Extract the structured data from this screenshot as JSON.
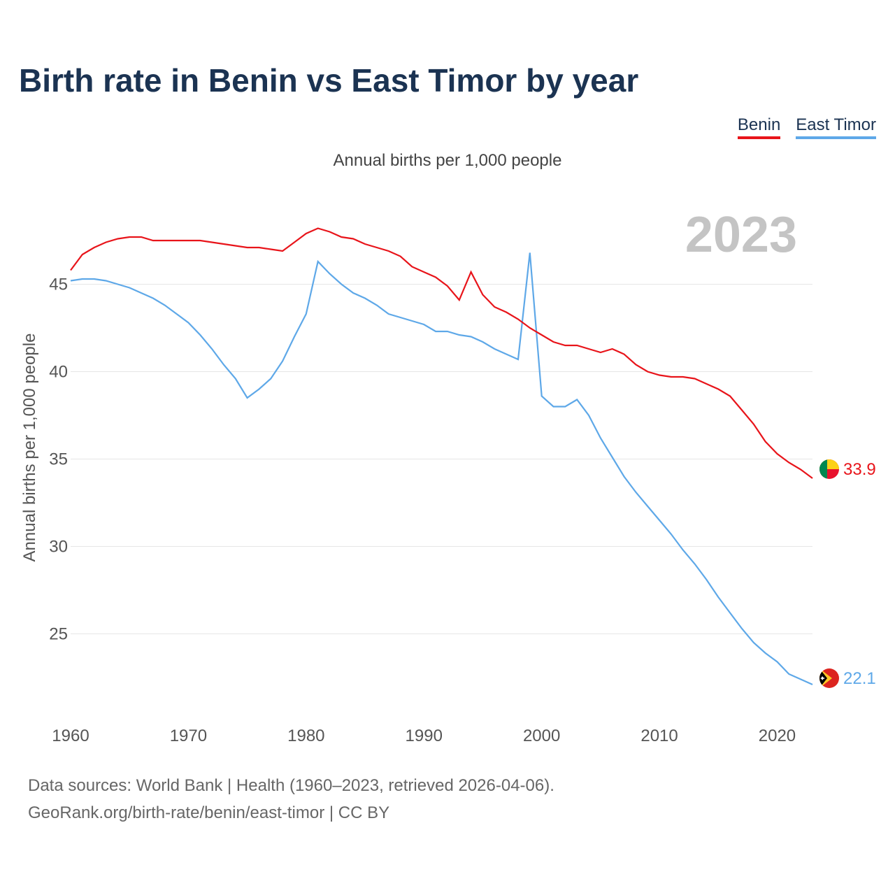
{
  "title": "Birth rate in Benin vs East Timor by year",
  "subtitle": "Annual births per 1,000 people",
  "legend": [
    {
      "label": "Benin",
      "color": "#e8141a"
    },
    {
      "label": "East Timor",
      "color": "#5ea8e8"
    }
  ],
  "year_watermark": "2023",
  "footer": {
    "line1": "Data sources: World Bank | Health (1960–2023, retrieved 2026-04-06).",
    "line2": "GeoRank.org/birth-rate/benin/east-timor | CC BY"
  },
  "chart_data": {
    "type": "line",
    "title": "Birth rate in Benin vs East Timor by year",
    "xlabel": "",
    "ylabel": "Annual births per 1,000 people",
    "xlim": [
      1960,
      2023
    ],
    "ylim": [
      20.3,
      50.7
    ],
    "xticks": [
      1960,
      1970,
      1980,
      1990,
      2000,
      2010,
      2020
    ],
    "yticks": [
      25,
      30,
      35,
      40,
      45
    ],
    "grid": true,
    "x": [
      1960,
      1961,
      1962,
      1963,
      1964,
      1965,
      1966,
      1967,
      1968,
      1969,
      1970,
      1971,
      1972,
      1973,
      1974,
      1975,
      1976,
      1977,
      1978,
      1979,
      1980,
      1981,
      1982,
      1983,
      1984,
      1985,
      1986,
      1987,
      1988,
      1989,
      1990,
      1991,
      1992,
      1993,
      1994,
      1995,
      1996,
      1997,
      1998,
      1999,
      2000,
      2001,
      2002,
      2003,
      2004,
      2005,
      2006,
      2007,
      2008,
      2009,
      2010,
      2011,
      2012,
      2013,
      2014,
      2015,
      2016,
      2017,
      2018,
      2019,
      2020,
      2021,
      2022,
      2023
    ],
    "series": [
      {
        "name": "Benin",
        "color": "#e8141a",
        "end_label": "33.9",
        "values": [
          45.8,
          46.7,
          47.1,
          47.4,
          47.6,
          47.7,
          47.7,
          47.5,
          47.5,
          47.5,
          47.5,
          47.5,
          47.4,
          47.3,
          47.2,
          47.1,
          47.1,
          47.0,
          46.9,
          47.4,
          47.9,
          48.2,
          48.0,
          47.7,
          47.6,
          47.3,
          47.1,
          46.9,
          46.6,
          46.0,
          45.7,
          45.4,
          44.9,
          44.1,
          45.7,
          44.4,
          43.7,
          43.4,
          43.0,
          42.5,
          42.1,
          41.7,
          41.5,
          41.5,
          41.3,
          41.1,
          41.3,
          41.0,
          40.4,
          40.0,
          39.8,
          39.7,
          39.7,
          39.6,
          39.3,
          39.0,
          38.6,
          37.8,
          37.0,
          36.0,
          35.3,
          34.8,
          34.4,
          33.9
        ]
      },
      {
        "name": "East Timor",
        "color": "#5ea8e8",
        "end_label": "22.1",
        "values": [
          45.2,
          45.3,
          45.3,
          45.2,
          45.0,
          44.8,
          44.5,
          44.2,
          43.8,
          43.3,
          42.8,
          42.1,
          41.3,
          40.4,
          39.6,
          38.5,
          39.0,
          39.6,
          40.6,
          42.0,
          43.3,
          46.3,
          45.6,
          45.0,
          44.5,
          44.2,
          43.8,
          43.3,
          43.1,
          42.9,
          42.7,
          42.3,
          42.3,
          42.1,
          42.0,
          41.7,
          41.3,
          41.0,
          40.7,
          46.8,
          38.6,
          38.0,
          38.0,
          38.4,
          37.5,
          36.2,
          35.1,
          34.0,
          33.1,
          32.3,
          31.5,
          30.7,
          29.8,
          29.0,
          28.1,
          27.1,
          26.2,
          25.3,
          24.5,
          23.9,
          23.4,
          22.7,
          22.4,
          22.1
        ]
      }
    ]
  }
}
